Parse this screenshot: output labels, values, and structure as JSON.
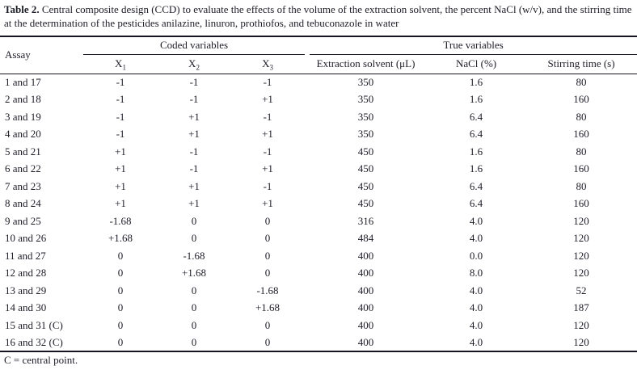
{
  "caption": {
    "label": "Table 2.",
    "text": "Central composite design (CCD) to evaluate the effects of the volume of the extraction solvent, the percent NaCl (w/v), and the stirring time at the determination of the pesticides anilazine, linuron, prothiofos, and tebuconazole in water"
  },
  "table": {
    "group_headers": {
      "assay": "Assay",
      "coded": "Coded variables",
      "true_vars": "True variables"
    },
    "sub_headers": {
      "x1_base": "X",
      "x1_sub": "1",
      "x2_base": "X",
      "x2_sub": "2",
      "x3_base": "X",
      "x3_sub": "3",
      "solvent": "Extraction solvent (μL)",
      "nacl": "NaCl (%)",
      "time": "Stirring time (s)"
    },
    "columns": [
      "Assay",
      "X1",
      "X2",
      "X3",
      "Extraction solvent (μL)",
      "NaCl (%)",
      "Stirring time (s)"
    ],
    "rows": [
      [
        "1 and 17",
        "-1",
        "-1",
        "-1",
        "350",
        "1.6",
        "80"
      ],
      [
        "2 and 18",
        "-1",
        "-1",
        "+1",
        "350",
        "1.6",
        "160"
      ],
      [
        "3 and 19",
        "-1",
        "+1",
        "-1",
        "350",
        "6.4",
        "80"
      ],
      [
        "4 and 20",
        "-1",
        "+1",
        "+1",
        "350",
        "6.4",
        "160"
      ],
      [
        "5 and 21",
        "+1",
        "-1",
        "-1",
        "450",
        "1.6",
        "80"
      ],
      [
        "6 and 22",
        "+1",
        "-1",
        "+1",
        "450",
        "1.6",
        "160"
      ],
      [
        "7 and 23",
        "+1",
        "+1",
        "-1",
        "450",
        "6.4",
        "80"
      ],
      [
        "8 and 24",
        "+1",
        "+1",
        "+1",
        "450",
        "6.4",
        "160"
      ],
      [
        "9 and 25",
        "-1.68",
        "0",
        "0",
        "316",
        "4.0",
        "120"
      ],
      [
        "10 and 26",
        "+1.68",
        "0",
        "0",
        "484",
        "4.0",
        "120"
      ],
      [
        "11 and 27",
        "0",
        "-1.68",
        "0",
        "400",
        "0.0",
        "120"
      ],
      [
        "12 and 28",
        "0",
        "+1.68",
        "0",
        "400",
        "8.0",
        "120"
      ],
      [
        "13 and 29",
        "0",
        "0",
        "-1.68",
        "400",
        "4.0",
        "52"
      ],
      [
        "14 and 30",
        "0",
        "0",
        "+1.68",
        "400",
        "4.0",
        "187"
      ],
      [
        "15 and 31 (C)",
        "0",
        "0",
        "0",
        "400",
        "4.0",
        "120"
      ],
      [
        "16 and 32 (C)",
        "0",
        "0",
        "0",
        "400",
        "4.0",
        "120"
      ]
    ],
    "footnote": "C = central point."
  }
}
